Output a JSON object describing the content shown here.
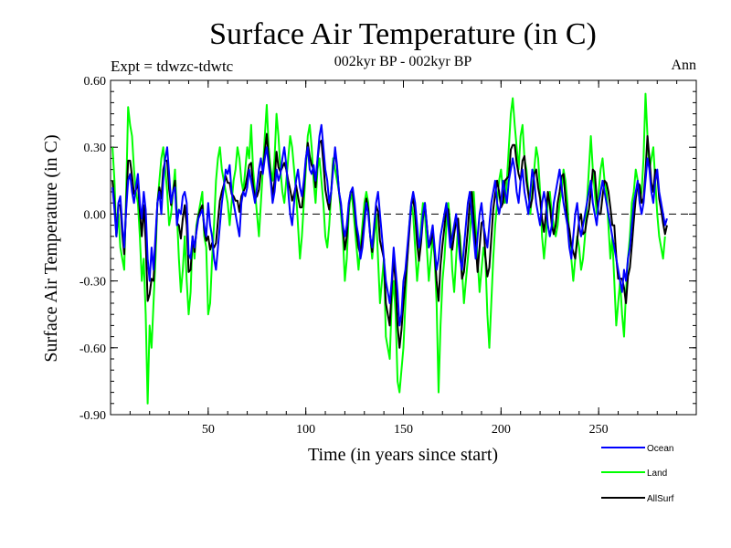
{
  "chart_data": {
    "type": "line",
    "title": "Surface Air Temperature (in C)",
    "subtitle": "002kyr BP - 002kyr BP",
    "expt_label": "Expt = tdwzc-tdwtc",
    "season_label": "Ann",
    "xlabel": "Time (in years since start)",
    "ylabel": "Surface Air Temperature (in C)",
    "xlim": [
      0,
      300
    ],
    "ylim": [
      -0.9,
      0.6
    ],
    "x_ticks": [
      50,
      100,
      150,
      200,
      250
    ],
    "x_tick_labels": [
      "50",
      "100",
      "150",
      "200",
      "250"
    ],
    "y_ticks": [
      -0.9,
      -0.6,
      -0.3,
      0.0,
      0.3,
      0.6
    ],
    "y_tick_labels": [
      "-0.90",
      "-0.60",
      "-0.30",
      "0.00",
      "0.30",
      "0.60"
    ],
    "reference_line": 0.0,
    "legend_position": "bottom-right",
    "x_start": 1,
    "series": [
      {
        "name": "Ocean",
        "color": "#0000ff",
        "values": [
          0.12,
          0.02,
          -0.1,
          0.05,
          0.08,
          -0.05,
          -0.15,
          0.02,
          0.15,
          0.18,
          0.1,
          0.05,
          0.12,
          0.18,
          0.05,
          -0.02,
          0.1,
          0.02,
          -0.2,
          -0.3,
          -0.15,
          -0.25,
          -0.1,
          0.05,
          0.1,
          0.0,
          0.15,
          0.25,
          0.3,
          0.18,
          0.05,
          0.1,
          0.12,
          -0.05,
          0.02,
          0.0,
          0.08,
          0.1,
          0.05,
          -0.18,
          -0.2,
          -0.1,
          -0.15,
          -0.08,
          -0.02,
          0.0,
          0.02,
          -0.05,
          -0.1,
          0.05,
          -0.05,
          -0.1,
          -0.2,
          -0.25,
          -0.15,
          -0.05,
          0.05,
          0.12,
          0.2,
          0.18,
          0.22,
          0.1,
          0.05,
          0.0,
          -0.05,
          -0.1,
          0.05,
          0.1,
          0.08,
          0.12,
          0.2,
          0.15,
          0.1,
          0.05,
          0.12,
          0.2,
          0.25,
          0.18,
          0.25,
          0.3,
          0.22,
          0.15,
          0.05,
          0.1,
          0.2,
          0.15,
          0.18,
          0.25,
          0.3,
          0.22,
          0.1,
          0.0,
          -0.05,
          0.05,
          0.15,
          0.2,
          0.12,
          0.08,
          0.15,
          0.25,
          0.3,
          0.2,
          0.18,
          0.22,
          0.15,
          0.25,
          0.35,
          0.4,
          0.3,
          0.2,
          0.15,
          0.05,
          0.1,
          0.2,
          0.3,
          0.22,
          0.1,
          0.05,
          -0.05,
          -0.1,
          -0.05,
          0.05,
          0.1,
          0.12,
          0.05,
          -0.05,
          -0.1,
          -0.2,
          -0.15,
          -0.05,
          0.05,
          0.0,
          -0.1,
          -0.15,
          -0.05,
          0.05,
          0.1,
          0.0,
          -0.1,
          -0.2,
          -0.3,
          -0.35,
          -0.4,
          -0.3,
          -0.15,
          -0.25,
          -0.35,
          -0.5,
          -0.45,
          -0.3,
          -0.25,
          -0.15,
          -0.05,
          0.05,
          0.1,
          0.05,
          -0.05,
          -0.15,
          -0.1,
          0.0,
          0.05,
          -0.05,
          -0.15,
          -0.1,
          -0.05,
          -0.15,
          -0.25,
          -0.2,
          -0.1,
          -0.05,
          0.0,
          0.05,
          -0.05,
          -0.15,
          -0.1,
          -0.05,
          0.0,
          -0.1,
          -0.2,
          -0.25,
          -0.15,
          -0.05,
          0.05,
          0.1,
          0.0,
          -0.1,
          -0.2,
          -0.1,
          0.0,
          0.05,
          -0.05,
          -0.1,
          -0.15,
          -0.05,
          0.05,
          0.1,
          0.15,
          0.05,
          0.0,
          0.05,
          0.15,
          0.1,
          0.05,
          0.15,
          0.2,
          0.25,
          0.2,
          0.1,
          0.05,
          0.15,
          0.2,
          0.1,
          0.05,
          0.0,
          0.1,
          0.2,
          0.15,
          0.05,
          0.0,
          -0.05,
          0.05,
          0.1,
          0.05,
          -0.05,
          -0.1,
          -0.05,
          0.05,
          0.1,
          0.15,
          0.2,
          0.12,
          0.05,
          0.0,
          -0.05,
          -0.15,
          -0.2,
          -0.1,
          0.0,
          0.05,
          -0.05,
          -0.1,
          -0.05,
          0.0,
          0.05,
          0.1,
          0.15,
          0.05,
          0.0,
          -0.05,
          0.05,
          0.1,
          0.15,
          0.1,
          0.05,
          0.0,
          -0.05,
          -0.1,
          -0.15,
          -0.2,
          -0.25,
          -0.3,
          -0.35,
          -0.25,
          -0.3,
          -0.2,
          -0.15,
          -0.05,
          0.05,
          0.1,
          0.15,
          0.05,
          0.0,
          0.05,
          0.15,
          0.25,
          0.2,
          0.1,
          0.05,
          0.15,
          0.2,
          0.1,
          0.05,
          0.0,
          -0.05,
          -0.02
        ]
      },
      {
        "name": "Land",
        "color": "#00ff00",
        "values": [
          0.3,
          0.15,
          -0.1,
          0.0,
          -0.15,
          -0.2,
          -0.25,
          0.1,
          0.48,
          0.4,
          0.35,
          0.2,
          0.1,
          0.05,
          -0.1,
          -0.3,
          -0.2,
          -0.45,
          -0.85,
          -0.5,
          -0.6,
          -0.4,
          -0.2,
          0.05,
          0.15,
          0.25,
          0.3,
          0.2,
          0.1,
          -0.05,
          0.0,
          0.1,
          0.2,
          0.0,
          -0.2,
          -0.35,
          -0.25,
          -0.1,
          -0.3,
          -0.45,
          -0.35,
          -0.1,
          -0.2,
          -0.05,
          0.0,
          0.05,
          0.1,
          -0.1,
          -0.15,
          -0.45,
          -0.4,
          -0.2,
          -0.05,
          0.15,
          0.25,
          0.3,
          0.2,
          0.15,
          0.1,
          0.05,
          -0.05,
          0.05,
          0.15,
          0.2,
          0.3,
          0.25,
          0.15,
          0.1,
          0.2,
          0.3,
          0.25,
          0.4,
          0.2,
          0.1,
          0.0,
          -0.1,
          0.05,
          0.2,
          0.35,
          0.49,
          0.3,
          0.2,
          0.15,
          0.25,
          0.45,
          0.35,
          0.2,
          0.1,
          0.05,
          0.15,
          0.25,
          0.35,
          0.3,
          0.2,
          0.1,
          -0.05,
          -0.2,
          -0.1,
          0.05,
          0.2,
          0.35,
          0.4,
          0.3,
          0.15,
          0.05,
          0.2,
          0.25,
          0.15,
          0.05,
          -0.1,
          -0.15,
          -0.05,
          0.1,
          0.25,
          0.2,
          0.15,
          0.1,
          0.0,
          -0.1,
          -0.3,
          -0.2,
          0.0,
          0.1,
          0.05,
          -0.05,
          -0.15,
          -0.25,
          -0.15,
          -0.05,
          0.05,
          0.1,
          0.05,
          -0.1,
          -0.2,
          -0.1,
          0.0,
          -0.2,
          -0.4,
          -0.3,
          -0.2,
          -0.55,
          -0.6,
          -0.65,
          -0.4,
          -0.3,
          -0.45,
          -0.75,
          -0.8,
          -0.7,
          -0.6,
          -0.4,
          -0.2,
          -0.05,
          0.05,
          0.0,
          -0.15,
          -0.3,
          -0.2,
          -0.05,
          0.05,
          0.0,
          -0.15,
          -0.3,
          -0.2,
          -0.1,
          -0.2,
          -0.4,
          -0.8,
          -0.5,
          -0.3,
          -0.2,
          -0.05,
          0.05,
          -0.05,
          -0.25,
          -0.35,
          -0.2,
          -0.05,
          -0.1,
          -0.25,
          -0.4,
          -0.3,
          -0.2,
          -0.1,
          0.05,
          0.1,
          -0.05,
          -0.2,
          -0.35,
          -0.25,
          -0.15,
          -0.2,
          -0.45,
          -0.6,
          -0.4,
          -0.2,
          -0.05,
          0.05,
          0.15,
          0.2,
          0.1,
          0.05,
          0.15,
          0.3,
          0.45,
          0.52,
          0.4,
          0.3,
          0.2,
          0.35,
          0.4,
          0.25,
          0.2,
          0.1,
          0.0,
          0.1,
          0.2,
          0.3,
          0.25,
          0.1,
          -0.1,
          -0.2,
          -0.1,
          0.05,
          0.1,
          0.0,
          -0.05,
          -0.1,
          -0.05,
          0.05,
          0.1,
          0.2,
          0.15,
          0.05,
          -0.1,
          -0.2,
          -0.3,
          -0.2,
          -0.1,
          -0.15,
          -0.25,
          -0.2,
          -0.1,
          0.05,
          0.2,
          0.35,
          0.2,
          0.1,
          0.0,
          0.1,
          0.2,
          0.25,
          0.15,
          0.1,
          -0.05,
          -0.2,
          -0.1,
          -0.3,
          -0.5,
          -0.4,
          -0.3,
          -0.45,
          -0.55,
          -0.35,
          -0.2,
          -0.1,
          0.05,
          0.1,
          0.2,
          0.15,
          0.05,
          0.1,
          0.25,
          0.54,
          0.35,
          0.2,
          0.25,
          0.3,
          0.15,
          0.0,
          -0.1,
          -0.15,
          -0.2,
          -0.1
        ]
      },
      {
        "name": "AllSurf",
        "color": "#000000",
        "values": [
          0.15,
          0.05,
          -0.1,
          0.04,
          0.04,
          -0.09,
          -0.18,
          0.04,
          0.24,
          0.24,
          0.17,
          0.09,
          0.11,
          0.14,
          0.01,
          -0.1,
          0.04,
          -0.12,
          -0.39,
          -0.36,
          -0.29,
          -0.3,
          -0.13,
          0.05,
          0.12,
          0.07,
          0.2,
          0.24,
          0.24,
          0.11,
          0.04,
          0.1,
          0.15,
          -0.04,
          -0.05,
          -0.11,
          -0.02,
          0.04,
          -0.05,
          -0.26,
          -0.25,
          -0.1,
          -0.17,
          -0.07,
          -0.01,
          0.02,
          0.04,
          -0.07,
          -0.12,
          -0.1,
          -0.16,
          -0.13,
          -0.15,
          -0.13,
          -0.03,
          0.06,
          0.1,
          0.13,
          0.17,
          0.14,
          0.14,
          0.09,
          0.08,
          0.06,
          0.06,
          0.01,
          0.08,
          0.1,
          0.12,
          0.17,
          0.22,
          0.23,
          0.13,
          0.07,
          0.08,
          0.11,
          0.19,
          0.19,
          0.28,
          0.36,
          0.25,
          0.17,
          0.08,
          0.15,
          0.28,
          0.21,
          0.19,
          0.21,
          0.23,
          0.2,
          0.15,
          0.11,
          0.06,
          0.09,
          0.13,
          0.08,
          0.03,
          0.03,
          0.12,
          0.24,
          0.32,
          0.26,
          0.22,
          0.2,
          0.12,
          0.24,
          0.32,
          0.33,
          0.23,
          0.11,
          0.06,
          0.02,
          0.1,
          0.22,
          0.28,
          0.21,
          0.1,
          0.04,
          -0.06,
          -0.16,
          -0.1,
          0.04,
          0.1,
          0.1,
          0.02,
          -0.08,
          -0.15,
          -0.18,
          -0.1,
          -0.02,
          0.07,
          0.02,
          -0.1,
          -0.17,
          -0.07,
          0.04,
          0.01,
          -0.12,
          -0.16,
          -0.2,
          -0.4,
          -0.45,
          -0.5,
          -0.33,
          -0.2,
          -0.31,
          -0.5,
          -0.6,
          -0.52,
          -0.4,
          -0.3,
          -0.2,
          -0.08,
          0.04,
          0.07,
          0.0,
          -0.13,
          -0.21,
          -0.13,
          -0.02,
          0.05,
          -0.05,
          -0.15,
          -0.13,
          -0.07,
          -0.17,
          -0.3,
          -0.39,
          -0.23,
          -0.14,
          -0.06,
          0.03,
          0.02,
          -0.1,
          -0.16,
          -0.09,
          -0.03,
          -0.02,
          -0.15,
          -0.29,
          -0.26,
          -0.17,
          -0.07,
          0.05,
          0.1,
          -0.02,
          -0.13,
          -0.26,
          -0.15,
          -0.04,
          -0.03,
          -0.19,
          -0.28,
          -0.24,
          -0.11,
          0.02,
          0.09,
          0.15,
          0.1,
          0.03,
          0.05,
          0.15,
          0.16,
          0.17,
          0.29,
          0.31,
          0.31,
          0.23,
          0.18,
          0.15,
          0.24,
          0.26,
          0.15,
          0.09,
          0.03,
          0.07,
          0.18,
          0.2,
          0.12,
          0.07,
          -0.02,
          -0.08,
          0.0,
          0.1,
          0.04,
          -0.05,
          -0.09,
          -0.05,
          0.05,
          0.1,
          0.17,
          0.18,
          0.07,
          -0.03,
          -0.07,
          -0.14,
          -0.17,
          -0.2,
          -0.12,
          -0.03,
          0.0,
          -0.09,
          -0.08,
          -0.02,
          0.02,
          0.1,
          0.2,
          0.19,
          0.07,
          0.0,
          0.0,
          0.08,
          0.15,
          0.14,
          0.1,
          0.03,
          -0.05,
          -0.05,
          -0.19,
          -0.29,
          -0.29,
          -0.29,
          -0.33,
          -0.4,
          -0.28,
          -0.24,
          -0.14,
          -0.03,
          0.07,
          0.14,
          0.13,
          0.05,
          0.07,
          0.19,
          0.35,
          0.25,
          0.14,
          0.1,
          0.2,
          0.18,
          0.07,
          0.02,
          -0.04,
          -0.09,
          -0.05
        ]
      }
    ]
  }
}
